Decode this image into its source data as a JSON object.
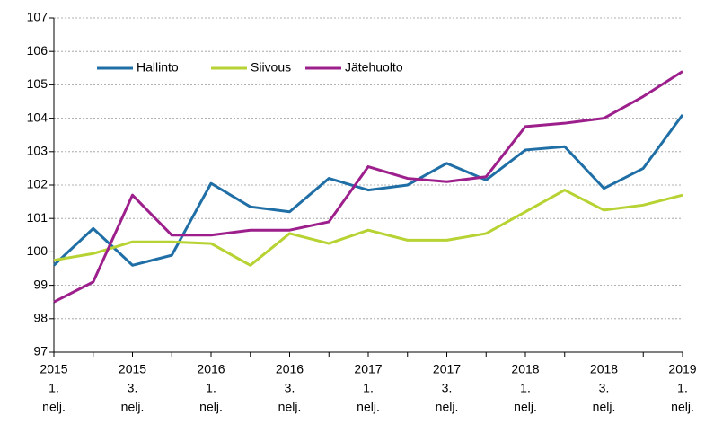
{
  "chart_data": {
    "type": "line",
    "categories": [
      [
        "2015",
        "1.",
        "nelj."
      ],
      null,
      [
        "2015",
        "3.",
        "nelj."
      ],
      null,
      [
        "2016",
        "1.",
        "nelj."
      ],
      null,
      [
        "2016",
        "3.",
        "nelj."
      ],
      null,
      [
        "2017",
        "1.",
        "nelj."
      ],
      null,
      [
        "2017",
        "3.",
        "nelj."
      ],
      null,
      [
        "2018",
        "1.",
        "nelj."
      ],
      null,
      [
        "2018",
        "3.",
        "nelj."
      ],
      null,
      [
        "2019",
        "1.",
        "nelj."
      ]
    ],
    "series": [
      {
        "name": "Hallinto",
        "color": "#1f6fa6",
        "values": [
          99.6,
          100.7,
          99.6,
          99.9,
          102.05,
          101.35,
          101.2,
          102.2,
          101.85,
          102.0,
          102.65,
          102.15,
          103.05,
          103.15,
          101.9,
          102.5,
          104.1
        ]
      },
      {
        "name": "Siivous",
        "color": "#b6d333",
        "values": [
          99.75,
          99.95,
          100.3,
          100.3,
          100.25,
          99.6,
          100.55,
          100.25,
          100.65,
          100.35,
          100.35,
          100.55,
          101.2,
          101.85,
          101.25,
          101.4,
          101.7
        ]
      },
      {
        "name": "Jätehuolto",
        "color": "#9c1f8c",
        "values": [
          98.5,
          99.1,
          101.7,
          100.5,
          100.5,
          100.65,
          100.65,
          100.9,
          102.55,
          102.2,
          102.1,
          102.25,
          103.75,
          103.85,
          104.0,
          104.65,
          105.4
        ]
      }
    ],
    "ylim": [
      97,
      107
    ],
    "yticks": [
      97,
      98,
      99,
      100,
      101,
      102,
      103,
      104,
      105,
      106,
      107
    ],
    "grid": true,
    "legend": "top-left"
  }
}
